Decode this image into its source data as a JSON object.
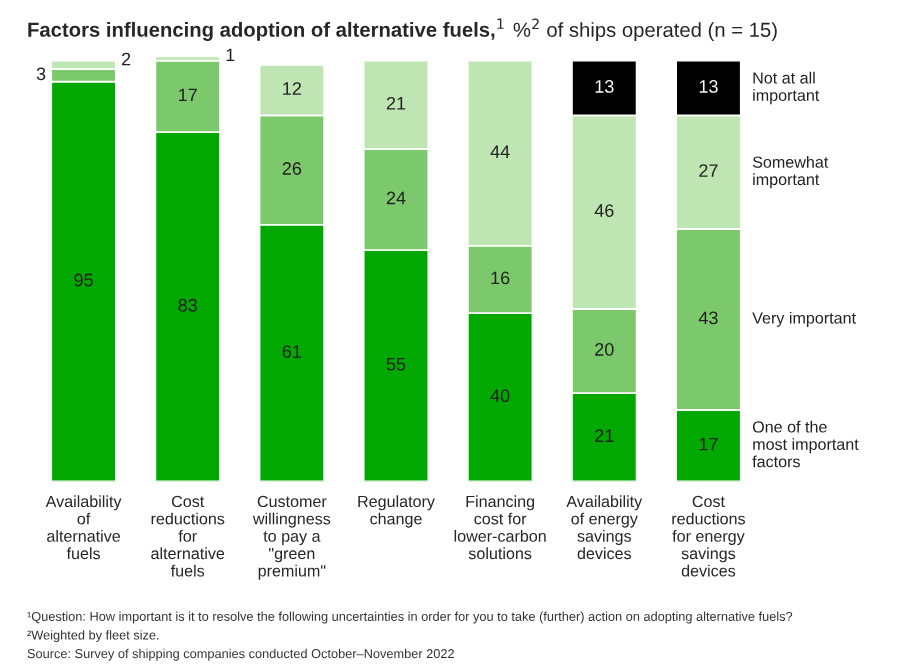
{
  "chart_data": {
    "type": "bar",
    "stacked": true,
    "title": "Factors influencing adoption of alternative fuels,$^{1}$",
    "subtitle": "%$^{2}$ of ships operated (n = 15)",
    "categories": [
      "Availability of alternative fuels",
      "Cost reductions for alternative fuels",
      "Customer willingness to pay a \"green premium\"",
      "Regulatory change",
      "Financing cost for lower-carbon solutions",
      "Availability of energy savings devices",
      "Cost reductions for energy savings devices"
    ],
    "series": [
      {
        "name": "One of the most important factors",
        "color": "#00a800",
        "values": [
          95,
          83,
          61,
          55,
          40,
          21,
          17
        ],
        "value_labels": [
          "95",
          "83",
          "61",
          "55",
          "40",
          "21",
          "17"
        ]
      },
      {
        "name": "Very important",
        "color": "#7bc96a",
        "values": [
          3,
          17,
          26,
          24,
          16,
          20,
          43
        ],
        "value_labels": [
          "3",
          "17",
          "26",
          "24",
          "16",
          "20",
          "43"
        ]
      },
      {
        "name": "Somewhat important",
        "color": "#bfe5b3",
        "values": [
          2,
          1,
          12,
          21,
          44,
          46,
          27
        ],
        "value_labels": [
          "2",
          "1",
          "12",
          "21",
          "44",
          "46",
          "27"
        ]
      },
      {
        "name": "Not at all important",
        "color": "#000000",
        "values": [
          null,
          null,
          null,
          null,
          null,
          13,
          13
        ],
        "value_labels": [
          null,
          null,
          null,
          null,
          null,
          "13",
          "13"
        ]
      }
    ],
    "legend": "right",
    "grid": false,
    "tick_labels": "x",
    "annotations": [
      "¹Question: How important is it to resolve the following uncertainties in order for you to take (further) action on adopting alternative fuels?",
      "²Weighted by fleet size.",
      "Source: Survey of shipping companies conducted October–November 2022"
    ]
  }
}
